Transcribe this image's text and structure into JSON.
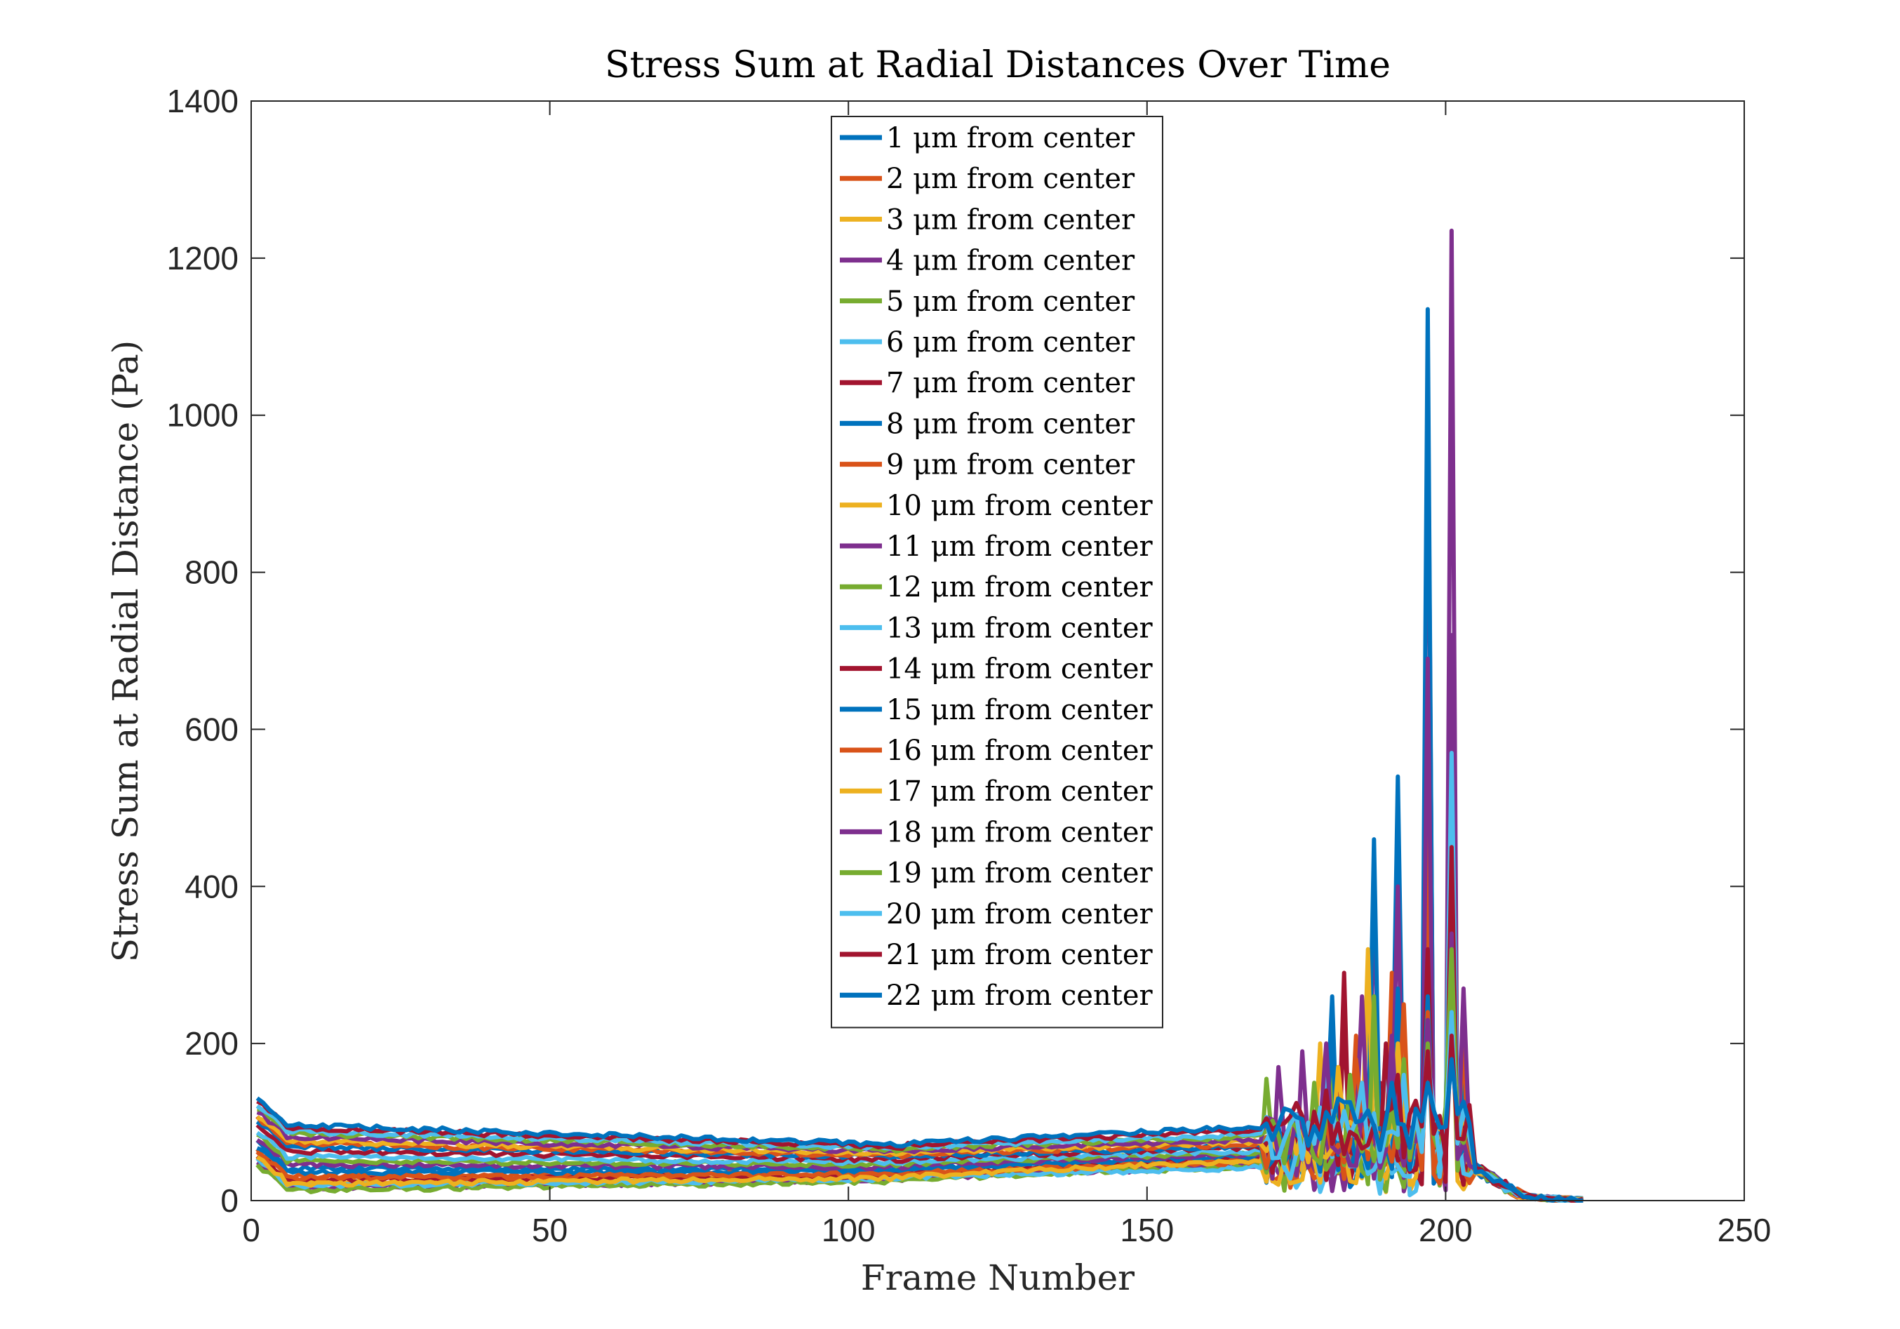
{
  "chart_data": {
    "type": "line",
    "title": "Stress Sum at Radial Distances Over Time",
    "xlabel": "Frame Number",
    "ylabel": "Stress Sum at Radial Distance (Pa)",
    "xlim": [
      0,
      250
    ],
    "ylim": [
      0,
      1400
    ],
    "xticks": [
      0,
      50,
      100,
      150,
      200,
      250
    ],
    "yticks": [
      0,
      200,
      400,
      600,
      800,
      1000,
      1200,
      1400
    ],
    "grid": false,
    "legend_position": "top-center",
    "colors": [
      "#0072BD",
      "#D95319",
      "#EDB120",
      "#7E2F8E",
      "#77AC30",
      "#4DBEEE",
      "#A2142F"
    ],
    "series": [
      {
        "name": "1 μm from center",
        "base": 40,
        "end": 55,
        "spikes": {
          "175": 90,
          "183": 120,
          "188": 200,
          "192": 260,
          "197": 420,
          "201": 560,
          "203": 160
        }
      },
      {
        "name": "2 μm from center",
        "base": 30,
        "end": 50,
        "spikes": {
          "185": 180,
          "193": 120,
          "197": 360,
          "201": 510,
          "203": 200
        }
      },
      {
        "name": "3 μm from center",
        "base": 22,
        "end": 48,
        "spikes": {
          "179": 200,
          "187": 300,
          "192": 230,
          "197": 240,
          "201": 280
        }
      },
      {
        "name": "4 μm from center",
        "base": 15,
        "end": 45,
        "spikes": {
          "176": 190,
          "188": 400,
          "192": 170,
          "197": 1080,
          "201": 1235,
          "203": 270
        }
      },
      {
        "name": "5 μm from center",
        "base": 12,
        "end": 45,
        "spikes": {
          "170": 155,
          "181": 160,
          "188": 200,
          "197": 240,
          "201": 290
        }
      },
      {
        "name": "6 μm from center",
        "base": 18,
        "end": 42,
        "spikes": {
          "184": 140,
          "193": 150,
          "197": 210,
          "201": 290
        }
      },
      {
        "name": "7 μm from center",
        "base": 25,
        "end": 55,
        "spikes": {
          "183": 290,
          "189": 150,
          "197": 300,
          "201": 560
        }
      },
      {
        "name": "8 μm from center",
        "base": 35,
        "end": 58,
        "spikes": {
          "181": 260,
          "188": 460,
          "192": 540,
          "197": 1135,
          "201": 700
        }
      },
      {
        "name": "9 μm from center",
        "base": 28,
        "end": 50,
        "spikes": {
          "185": 210,
          "191": 290,
          "197": 470,
          "201": 500
        }
      },
      {
        "name": "10 μm from center",
        "base": 20,
        "end": 52,
        "spikes": {
          "187": 320,
          "193": 240,
          "197": 280,
          "201": 300
        }
      },
      {
        "name": "11 μm from center",
        "base": 45,
        "end": 60,
        "spikes": {
          "172": 170,
          "186": 260,
          "192": 400,
          "197": 690,
          "201": 720
        }
      },
      {
        "name": "12 μm from center",
        "base": 50,
        "end": 62,
        "spikes": {
          "178": 150,
          "188": 260,
          "197": 260,
          "201": 300
        }
      },
      {
        "name": "13 μm from center",
        "base": 55,
        "end": 64,
        "spikes": {
          "180": 170,
          "190": 200,
          "197": 220,
          "201": 570
        }
      },
      {
        "name": "14 μm from center",
        "base": 62,
        "end": 68,
        "spikes": {
          "183": 230,
          "190": 200,
          "197": 320,
          "201": 450
        }
      },
      {
        "name": "15 μm from center",
        "base": 68,
        "end": 70,
        "spikes": {
          "181": 200,
          "192": 270,
          "197": 260,
          "201": 330
        }
      },
      {
        "name": "16 μm from center",
        "base": 72,
        "end": 72,
        "spikes": {
          "185": 180,
          "193": 250,
          "197": 240,
          "201": 280
        }
      },
      {
        "name": "17 μm from center",
        "base": 75,
        "end": 75,
        "spikes": {
          "182": 170,
          "192": 200,
          "197": 220,
          "201": 260
        }
      },
      {
        "name": "18 μm from center",
        "base": 80,
        "end": 78,
        "spikes": {
          "180": 200,
          "191": 210,
          "197": 230,
          "201": 340
        }
      },
      {
        "name": "19 μm from center",
        "base": 85,
        "end": 82,
        "spikes": {
          "184": 160,
          "193": 180,
          "197": 200,
          "201": 320
        }
      },
      {
        "name": "20 μm from center",
        "base": 88,
        "end": 85,
        "spikes": {
          "186": 150,
          "193": 160,
          "197": 180,
          "201": 240
        }
      },
      {
        "name": "21 μm from center",
        "base": 92,
        "end": 90,
        "spikes": {
          "180": 140,
          "192": 160,
          "197": 190,
          "201": 210
        }
      },
      {
        "name": "22 μm from center",
        "base": 96,
        "end": 95,
        "spikes": {
          "182": 130,
          "191": 150,
          "197": 150,
          "201": 180
        }
      }
    ]
  }
}
